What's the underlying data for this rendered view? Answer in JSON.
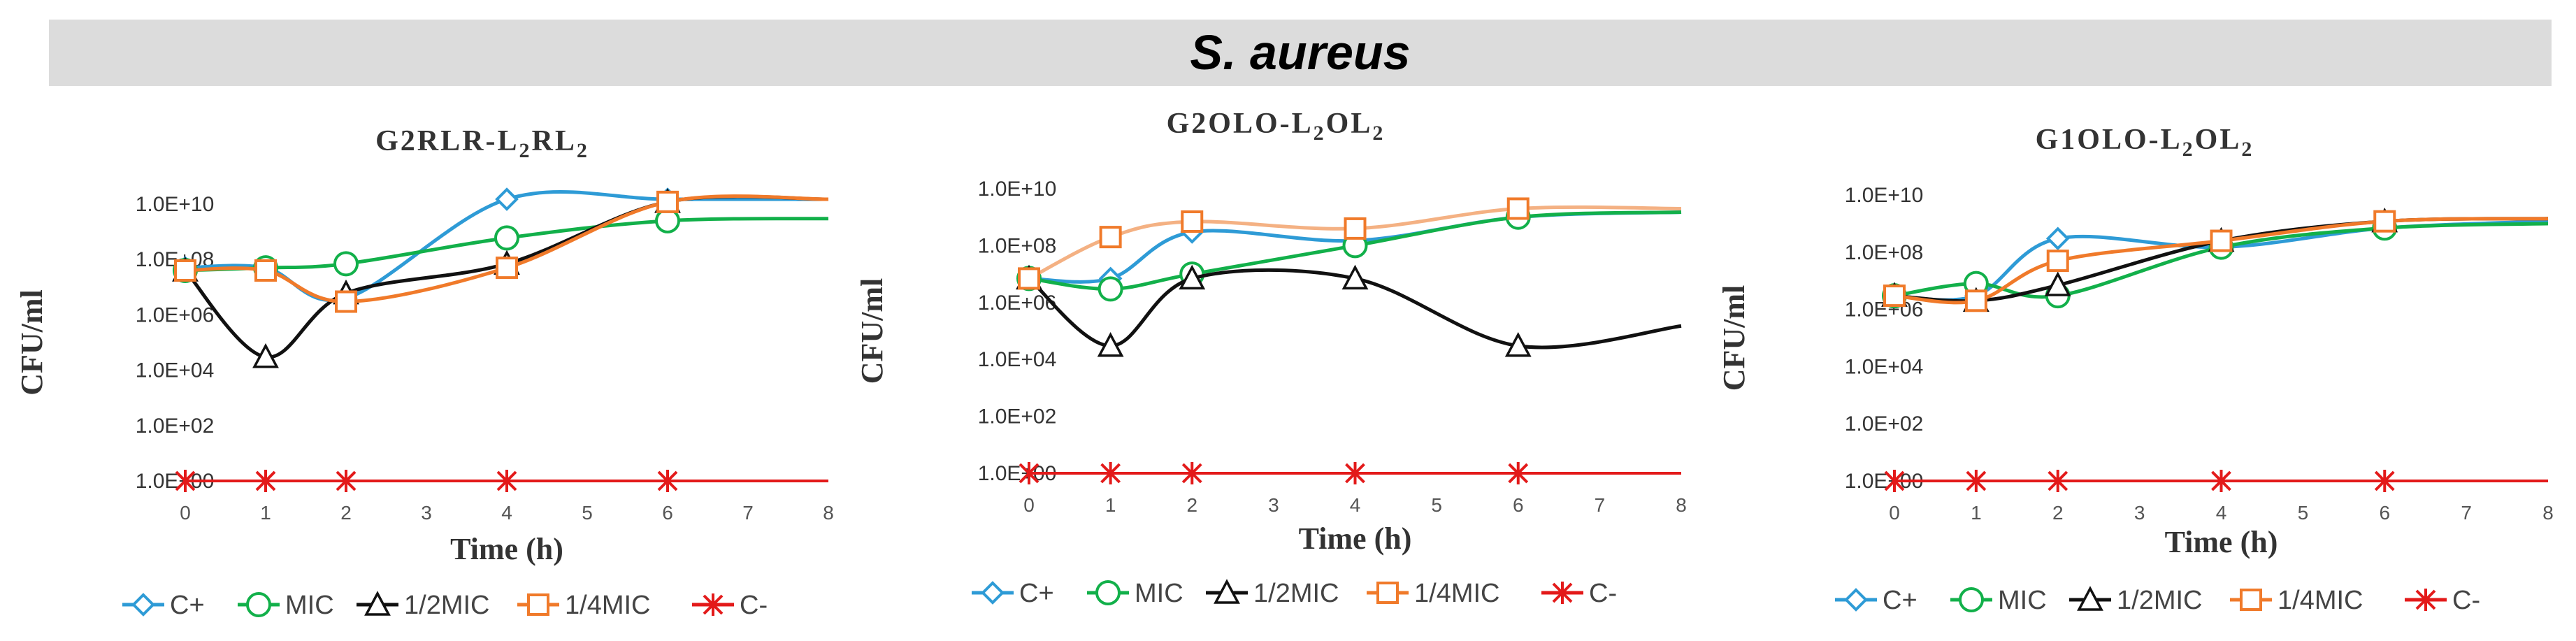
{
  "banner": {
    "title": "S. aureus"
  },
  "colors": {
    "C+": "#2e9bd6",
    "MIC": "#12b04a",
    "1/2MIC": "#111111",
    "1/4MIC": "#f07a2a",
    "C-": "#e31a1a",
    "1/4MIC_line_p1": "#f4b183",
    "banner_bg": "#dcdcdc"
  },
  "legend": {
    "items": [
      "C+",
      "MIC",
      "1/2MIC",
      "1/4MIC",
      "C-"
    ]
  },
  "chart_data": [
    {
      "type": "line",
      "title_base": "G2RLR-L",
      "title_sub1": "2",
      "title_mid": "RL",
      "title_sub2": "2",
      "title": "G2RLR-L2RL2",
      "xlabel": "Time (h)",
      "ylabel": "CFU/ml",
      "x_ticks": [
        "0",
        "1",
        "2",
        "3",
        "4",
        "5",
        "6",
        "7",
        "8"
      ],
      "y_ticks": [
        "1.0E+00",
        "1.0E+02",
        "1.0E+04",
        "1.0E+06",
        "1.0E+08",
        "1.0E+10"
      ],
      "xlim": [
        0,
        8
      ],
      "ylim_log10": [
        0,
        10
      ],
      "series": [
        {
          "name": "C+",
          "x": [
            0,
            1,
            2,
            4,
            6,
            8
          ],
          "y": [
            50000000,
            50000000,
            4000000,
            15000000000,
            15000000000,
            15000000000
          ]
        },
        {
          "name": "MIC",
          "x": [
            0,
            1,
            2,
            4,
            6,
            8
          ],
          "y": [
            40000000,
            50000000,
            70000000,
            600000000,
            2500000000,
            3000000000
          ]
        },
        {
          "name": "1/2MIC",
          "x": [
            0,
            1,
            2,
            4,
            6,
            8
          ],
          "y": [
            40000000,
            30000,
            6000000,
            70000000,
            12000000000,
            15000000000
          ]
        },
        {
          "name": "1/4MIC",
          "x": [
            0,
            1,
            2,
            4,
            6,
            8
          ],
          "y": [
            40000000,
            40000000,
            3000000,
            50000000,
            12000000000,
            15000000000
          ]
        },
        {
          "name": "C-",
          "x": [
            0,
            1,
            2,
            4,
            6,
            8
          ],
          "y": [
            1,
            1,
            1,
            1,
            1,
            1
          ]
        }
      ]
    },
    {
      "type": "line",
      "title_base": "G2OLO-L",
      "title_sub1": "2",
      "title_mid": "OL",
      "title_sub2": "2",
      "title": "G2OLO-L2OL2",
      "xlabel": "Time (h)",
      "ylabel": "CFU/ml",
      "x_ticks": [
        "0",
        "1",
        "2",
        "3",
        "4",
        "5",
        "6",
        "7",
        "8"
      ],
      "y_ticks": [
        "1.0E+00",
        "1.0E+02",
        "1.0E+04",
        "1.0E+06",
        "1.0E+08",
        "1.0E+10"
      ],
      "xlim": [
        0,
        8
      ],
      "ylim_log10": [
        0,
        10
      ],
      "series": [
        {
          "name": "C+",
          "x": [
            0,
            1,
            2,
            4,
            6,
            8
          ],
          "y": [
            7000000,
            7000000,
            300000000,
            150000000,
            1000000000,
            1500000000
          ]
        },
        {
          "name": "MIC",
          "x": [
            0,
            1,
            2,
            4,
            6,
            8
          ],
          "y": [
            7000000,
            3000000,
            10000000,
            100000000,
            1000000000,
            1500000000
          ]
        },
        {
          "name": "1/2MIC",
          "x": [
            0,
            1,
            2,
            4,
            6,
            8
          ],
          "y": [
            7000000,
            30000,
            7000000,
            7000000,
            30000,
            150000
          ]
        },
        {
          "name": "1/4MIC",
          "x": [
            0,
            1,
            2,
            4,
            6,
            8
          ],
          "y": [
            7000000,
            200000000,
            700000000,
            400000000,
            2000000000,
            2000000000
          ]
        },
        {
          "name": "C-",
          "x": [
            0,
            1,
            2,
            4,
            6,
            8
          ],
          "y": [
            1,
            1,
            1,
            1,
            1,
            1
          ]
        }
      ]
    },
    {
      "type": "line",
      "title_base": "G1OLO-L",
      "title_sub1": "2",
      "title_mid": "OL",
      "title_sub2": "2",
      "title": "G1OLO-L2OL2",
      "xlabel": "Time (h)",
      "ylabel": "CFU/ml",
      "x_ticks": [
        "0",
        "1",
        "2",
        "3",
        "4",
        "5",
        "6",
        "7",
        "8"
      ],
      "y_ticks": [
        "1.0E+00",
        "1.0E+02",
        "1.0E+04",
        "1.0E+06",
        "1.0E+08",
        "1.0E+10"
      ],
      "xlim": [
        0,
        8
      ],
      "ylim_log10": [
        0,
        10
      ],
      "series": [
        {
          "name": "C+",
          "x": [
            0,
            1,
            2,
            4,
            6,
            8
          ],
          "y": [
            3000000,
            3000000,
            300000000,
            150000000,
            700000000,
            1200000000
          ]
        },
        {
          "name": "MIC",
          "x": [
            0,
            1,
            2,
            4,
            6,
            8
          ],
          "y": [
            3000000,
            8000000,
            3000000,
            150000000,
            700000000,
            1000000000
          ]
        },
        {
          "name": "1/2MIC",
          "x": [
            0,
            1,
            2,
            4,
            6,
            8
          ],
          "y": [
            3000000,
            2000000,
            7000000,
            250000000,
            1200000000,
            1500000000
          ]
        },
        {
          "name": "1/4MIC",
          "x": [
            0,
            1,
            2,
            4,
            6,
            8
          ],
          "y": [
            3000000,
            2000000,
            50000000,
            250000000,
            1200000000,
            1500000000
          ]
        },
        {
          "name": "C-",
          "x": [
            0,
            1,
            2,
            4,
            6,
            8
          ],
          "y": [
            1,
            1,
            1,
            1,
            1,
            1
          ]
        }
      ]
    }
  ]
}
